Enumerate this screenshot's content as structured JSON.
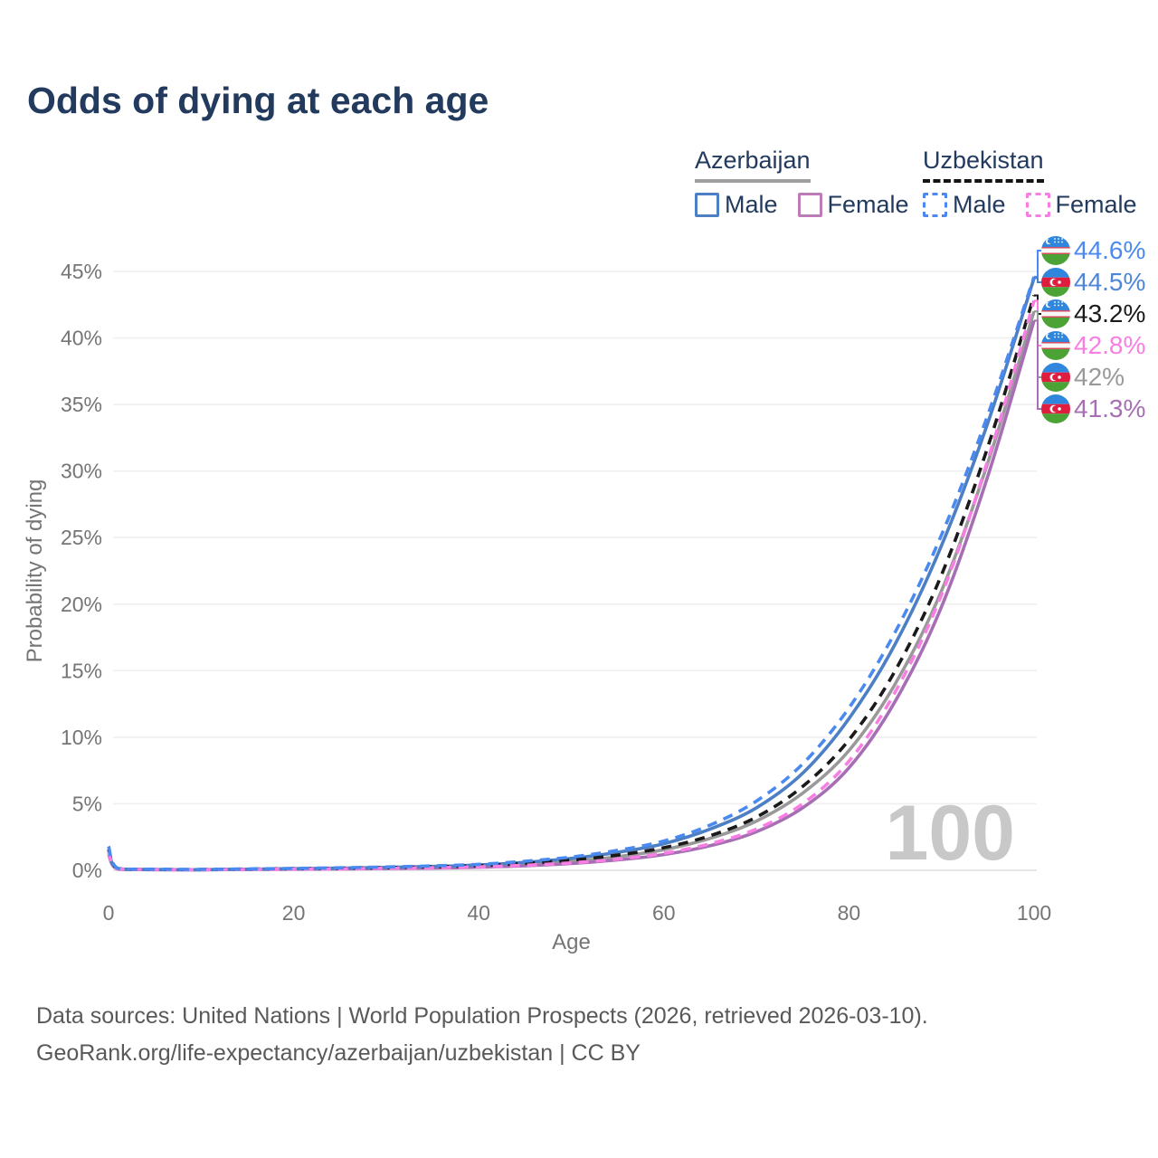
{
  "title": "Odds of dying at each age",
  "legend": {
    "groups": [
      {
        "label": "Azerbaijan",
        "line_color": "#9e9e9e",
        "line_style": "solid",
        "items": [
          {
            "label": "Male",
            "color": "#4d7fc4",
            "dashed": false
          },
          {
            "label": "Female",
            "color": "#bd7cb5",
            "dashed": false
          }
        ]
      },
      {
        "label": "Uzbekistan",
        "line_color": "#141414",
        "line_style": "dashed",
        "items": [
          {
            "label": "Male",
            "color": "#4a8af0",
            "dashed": true
          },
          {
            "label": "Female",
            "color": "#f97ee3",
            "dashed": true
          }
        ]
      }
    ]
  },
  "chart_data": {
    "type": "line",
    "title": "Odds of dying at each age",
    "xlabel": "Age",
    "ylabel": "Probability of dying",
    "xlim": [
      0,
      100
    ],
    "ylim": [
      0,
      45
    ],
    "x_ticks": [
      0,
      20,
      40,
      60,
      80,
      100
    ],
    "y_tick_values": [
      0,
      5,
      10,
      15,
      20,
      25,
      30,
      35,
      40,
      45
    ],
    "y_tick_labels": [
      "0%",
      "5%",
      "10%",
      "15%",
      "20%",
      "25%",
      "30%",
      "35%",
      "40%",
      "45%"
    ],
    "grid": "horizontal",
    "legend_position": "top-right",
    "age_watermark": "100",
    "x": [
      0,
      1,
      5,
      10,
      15,
      20,
      25,
      30,
      35,
      40,
      45,
      50,
      55,
      60,
      65,
      70,
      75,
      80,
      85,
      90,
      95,
      100
    ],
    "series": [
      {
        "id": "uz_male",
        "name": "Uzbekistan Male",
        "flag": "uz",
        "color": "#4a8af0",
        "dashed": true,
        "label_color": "#4a8af0",
        "end_label": "44.6%",
        "values": [
          1.8,
          0.15,
          0.08,
          0.07,
          0.1,
          0.14,
          0.19,
          0.25,
          0.33,
          0.45,
          0.68,
          1.0,
          1.5,
          2.2,
          3.4,
          5.2,
          8.0,
          12.2,
          17.9,
          25.2,
          34.2,
          44.6
        ]
      },
      {
        "id": "az_male",
        "name": "Azerbaijan Male",
        "flag": "az",
        "color": "#4d7fc4",
        "dashed": false,
        "label_color": "#4d86d8",
        "end_label": "44.5%",
        "values": [
          1.5,
          0.12,
          0.06,
          0.05,
          0.08,
          0.12,
          0.16,
          0.22,
          0.29,
          0.4,
          0.6,
          0.9,
          1.35,
          2.0,
          3.1,
          4.7,
          7.3,
          11.4,
          17.0,
          24.4,
          33.6,
          44.5
        ]
      },
      {
        "id": "uz_total",
        "name": "Uzbekistan",
        "flag": "uz",
        "color": "#1a1a1a",
        "dashed": true,
        "label_color": "#1a1a1a",
        "end_label": "43.2%",
        "values": [
          1.6,
          0.13,
          0.07,
          0.06,
          0.09,
          0.12,
          0.15,
          0.2,
          0.26,
          0.35,
          0.52,
          0.76,
          1.14,
          1.7,
          2.6,
          4.0,
          6.3,
          9.8,
          15.0,
          22.2,
          31.8,
          43.2
        ]
      },
      {
        "id": "uz_female",
        "name": "Uzbekistan Female",
        "flag": "uz",
        "color": "#f97ee3",
        "dashed": true,
        "label_color": "#f97ee3",
        "end_label": "42.8%",
        "values": [
          1.4,
          0.11,
          0.06,
          0.05,
          0.07,
          0.09,
          0.11,
          0.15,
          0.19,
          0.26,
          0.38,
          0.56,
          0.84,
          1.28,
          2.0,
          3.1,
          5.0,
          8.2,
          13.4,
          20.7,
          30.8,
          42.8
        ]
      },
      {
        "id": "az_total",
        "name": "Azerbaijan",
        "flag": "az",
        "color": "#999999",
        "dashed": false,
        "label_color": "#999999",
        "end_label": "42%",
        "values": [
          1.3,
          0.1,
          0.05,
          0.05,
          0.07,
          0.1,
          0.13,
          0.17,
          0.22,
          0.31,
          0.46,
          0.68,
          1.02,
          1.55,
          2.4,
          3.7,
          5.8,
          9.0,
          14.0,
          21.0,
          30.6,
          42.0
        ]
      },
      {
        "id": "az_female",
        "name": "Azerbaijan Female",
        "flag": "az",
        "color": "#a76fb3",
        "dashed": false,
        "label_color": "#a76fb3",
        "end_label": "41.3%",
        "values": [
          1.2,
          0.09,
          0.05,
          0.04,
          0.06,
          0.08,
          0.1,
          0.13,
          0.16,
          0.23,
          0.34,
          0.51,
          0.78,
          1.18,
          1.85,
          2.9,
          4.7,
          7.7,
          12.7,
          19.8,
          29.6,
          41.3
        ]
      }
    ],
    "flags": {
      "az": {
        "blue": "#2f86dc",
        "red": "#e01c3f",
        "green": "#4aa334"
      },
      "uz": {
        "blue": "#2f86dc",
        "red": "#d84b5e",
        "green": "#4aa334",
        "white": "#f7f9f9"
      }
    }
  },
  "footer": {
    "line1": "Data sources: United Nations | World Population Prospects (2026, retrieved 2026-03-10).",
    "line2": "GeoRank.org/life-expectancy/azerbaijan/uzbekistan | CC BY"
  }
}
